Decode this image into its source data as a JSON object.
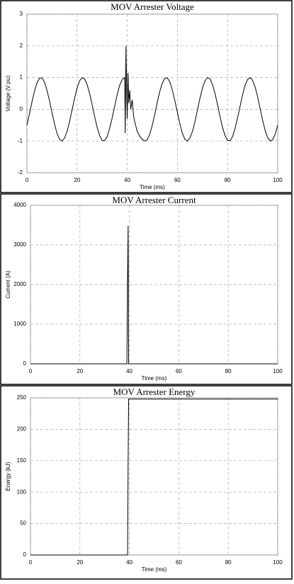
{
  "chart_data": [
    {
      "type": "line",
      "title": "MOV Arrester Voltage",
      "xlabel": "Time (ms)",
      "ylabel": "Voltage (V pu)",
      "xlim": [
        0,
        100
      ],
      "xticks": [
        0,
        20,
        40,
        60,
        80,
        100
      ],
      "ylim": [
        -2,
        3
      ],
      "yticks": [
        -2,
        -1,
        0,
        1,
        2,
        3
      ],
      "grid": true,
      "x": [
        0,
        1,
        2,
        3,
        4,
        5,
        6,
        7,
        8,
        9,
        10,
        11,
        12,
        13,
        14,
        15,
        16,
        17,
        18,
        19,
        20,
        21,
        22,
        23,
        24,
        25,
        26,
        27,
        28,
        29,
        30,
        31,
        32,
        33,
        34,
        35,
        36,
        37,
        38,
        39,
        39.2,
        39.5,
        39.8,
        40,
        40.3,
        40.6,
        41,
        41.4,
        42,
        42.5,
        43,
        44,
        45,
        46,
        47,
        48,
        49,
        50,
        51,
        52,
        53,
        54,
        55,
        56,
        57,
        58,
        59,
        60,
        61,
        62,
        63,
        64,
        65,
        66,
        67,
        68,
        69,
        70,
        71,
        72,
        73,
        74,
        75,
        76,
        77,
        78,
        79,
        80,
        81,
        82,
        83,
        84,
        85,
        86,
        87,
        88,
        89,
        90,
        91,
        92,
        93,
        94,
        95,
        96,
        97,
        98,
        99,
        100
      ],
      "series": [
        {
          "color": "#000000",
          "values": [
            -0.5,
            -0.15,
            0.23,
            0.57,
            0.83,
            0.98,
            0.99,
            0.86,
            0.6,
            0.27,
            -0.1,
            -0.46,
            -0.76,
            -0.95,
            -1,
            -0.91,
            -0.7,
            -0.39,
            -0.02,
            0.35,
            0.67,
            0.9,
            1,
            0.96,
            0.78,
            0.5,
            0.15,
            -0.23,
            -0.57,
            -0.83,
            -0.98,
            -0.99,
            -0.86,
            -0.6,
            -0.27,
            0.1,
            0.46,
            0.76,
            0.94,
            1.0,
            -0.75,
            2.0,
            0.4,
            -0.3,
            1.15,
            0.2,
            0.6,
            0.0,
            0.3,
            -0.2,
            -0.4,
            -0.7,
            -0.85,
            -0.95,
            -1.0,
            -0.96,
            -0.78,
            -0.5,
            -0.15,
            0.23,
            0.57,
            0.83,
            0.98,
            0.99,
            0.86,
            0.6,
            0.27,
            -0.1,
            -0.46,
            -0.76,
            -0.95,
            -1,
            -0.91,
            -0.7,
            -0.39,
            -0.02,
            0.35,
            0.67,
            0.9,
            1,
            0.96,
            0.78,
            0.5,
            0.15,
            -0.23,
            -0.57,
            -0.83,
            -0.98,
            -0.99,
            -0.86,
            -0.6,
            -0.27,
            0.1,
            0.46,
            0.76,
            0.94,
            1,
            0.91,
            0.7,
            0.39,
            0.02,
            -0.35,
            -0.67,
            -0.9,
            -1,
            -0.96,
            -0.78,
            -0.5
          ]
        }
      ]
    },
    {
      "type": "line",
      "title": "MOV Arrester Current",
      "xlabel": "Time (ms)",
      "ylabel": "Current (A)",
      "xlim": [
        0,
        100
      ],
      "xticks": [
        0,
        20,
        40,
        60,
        80,
        100
      ],
      "ylim": [
        0,
        4000
      ],
      "yticks": [
        0,
        1000,
        2000,
        3000,
        4000
      ],
      "grid": true,
      "x": [
        0,
        39,
        39.3,
        39.5,
        39.7,
        100
      ],
      "series": [
        {
          "color": "#000000",
          "values": [
            0,
            0,
            2300,
            3480,
            0,
            0
          ]
        }
      ]
    },
    {
      "type": "line",
      "title": "MOV Arrester Energy",
      "xlabel": "Time (ms)",
      "ylabel": "Energy (kJ)",
      "xlim": [
        0,
        100
      ],
      "xticks": [
        0,
        20,
        40,
        60,
        80,
        100
      ],
      "ylim": [
        0,
        250
      ],
      "yticks": [
        0,
        50,
        100,
        150,
        200,
        250
      ],
      "grid": true,
      "x": [
        0,
        39.3,
        39.5,
        39.7,
        100
      ],
      "series": [
        {
          "color": "#000000",
          "values": [
            0,
            0,
            150,
            248,
            248
          ]
        }
      ]
    }
  ]
}
